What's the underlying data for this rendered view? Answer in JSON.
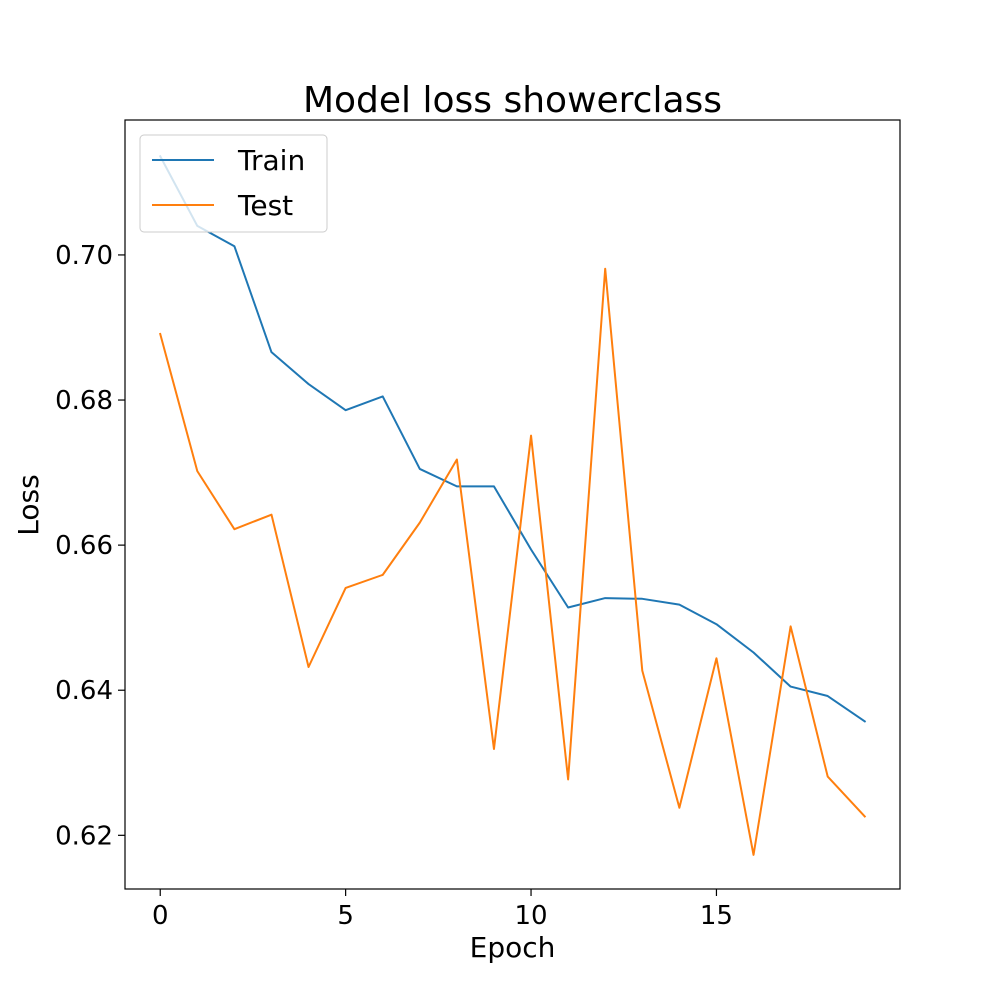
{
  "chart_data": {
    "type": "line",
    "title": "Model loss showerclass",
    "xlabel": "Epoch",
    "ylabel": "Loss",
    "x": [
      0,
      1,
      2,
      3,
      4,
      5,
      6,
      7,
      8,
      9,
      10,
      11,
      12,
      13,
      14,
      15,
      16,
      17,
      18,
      19
    ],
    "xlim": [
      -0.95,
      19.95
    ],
    "ylim": [
      0.6126,
      0.7186
    ],
    "xticks": [
      0,
      5,
      10,
      15
    ],
    "yticks": [
      0.62,
      0.64,
      0.66,
      0.68,
      0.7
    ],
    "ytick_labels": [
      "0.62",
      "0.64",
      "0.66",
      "0.68",
      "0.70"
    ],
    "grid": false,
    "legend_position": "top-left",
    "series": [
      {
        "name": "Train",
        "color": "#1f77b4",
        "values": [
          0.7136,
          0.704,
          0.7012,
          0.6866,
          0.6822,
          0.6786,
          0.6805,
          0.6705,
          0.6681,
          0.6681,
          0.6594,
          0.6514,
          0.6527,
          0.6526,
          0.6518,
          0.6491,
          0.6452,
          0.6405,
          0.6392,
          0.6357
        ]
      },
      {
        "name": "Test",
        "color": "#ff7f0e",
        "values": [
          0.6891,
          0.6702,
          0.6622,
          0.6642,
          0.6432,
          0.6541,
          0.6559,
          0.6631,
          0.6718,
          0.6319,
          0.6751,
          0.6277,
          0.6981,
          0.6427,
          0.6238,
          0.6444,
          0.6173,
          0.6488,
          0.6281,
          0.6226
        ]
      }
    ]
  }
}
